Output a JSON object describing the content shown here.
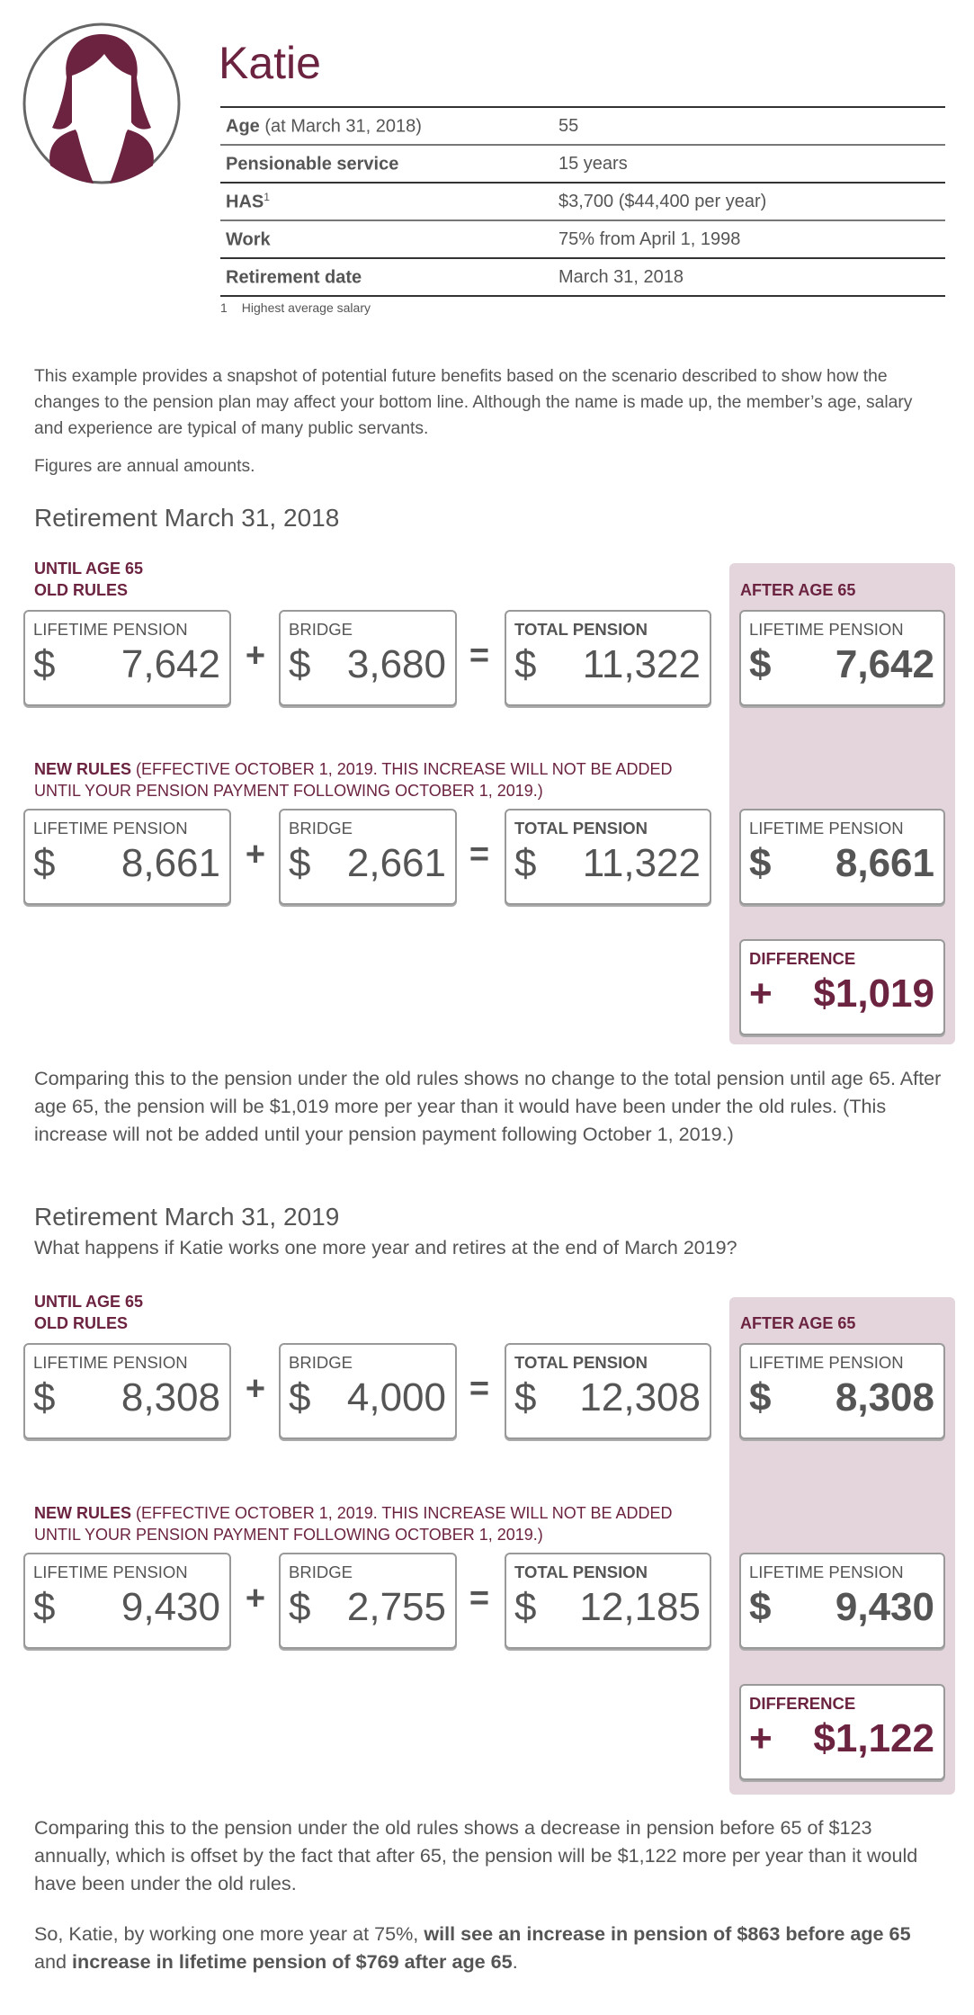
{
  "colors": {
    "accent": "#6b2340",
    "panel": "#e3d5db",
    "text": "#555555",
    "box_border": "#999999"
  },
  "profile": {
    "avatar_icon": "woman-avatar-icon",
    "name": "Katie",
    "rows": [
      {
        "label": "Age",
        "label_rest": " (at March 31, 2018)",
        "sup": "",
        "value": "55"
      },
      {
        "label": "Pensionable service",
        "label_rest": "",
        "sup": "",
        "value": "15 years"
      },
      {
        "label": "HAS",
        "label_rest": "",
        "sup": "1",
        "value": "$3,700 ($44,400 per year)"
      },
      {
        "label": "Work",
        "label_rest": "",
        "sup": "",
        "value": "75% from April 1, 1998"
      },
      {
        "label": "Retirement date",
        "label_rest": "",
        "sup": "",
        "value": "March 31, 2018"
      }
    ],
    "footnote": {
      "num": "1",
      "text": "Highest average salary"
    }
  },
  "intro": [
    "This example provides a snapshot of potential future benefits based on the scenario described to show how the changes to the pension plan may affect your bottom line. Although the name is made up, the member’s age, salary and experience are typical of many public servants.",
    "Figures are annual amounts."
  ],
  "sections": [
    {
      "heading": "Retirement March 31, 2018",
      "subtitle": "",
      "until_label": "UNTIL AGE 65",
      "old_label": "OLD RULES",
      "after_label": "AFTER AGE 65",
      "new_label": "NEW RULES",
      "new_note": " (EFFECTIVE OCTOBER 1, 2019. THIS INCREASE WILL NOT BE ADDED UNTIL YOUR PENSION PAYMENT FOLLOWING OCTOBER 1, 2019.)",
      "plus": "+",
      "equals": "=",
      "old": {
        "lifetime": {
          "label": "LIFETIME PENSION",
          "currency": "$",
          "value": "7,642"
        },
        "bridge": {
          "label": "BRIDGE",
          "currency": "$",
          "value": "3,680"
        },
        "total": {
          "label": "TOTAL PENSION",
          "currency": "$",
          "value": "11,322"
        },
        "after": {
          "label": "LIFETIME PENSION",
          "currency": "$",
          "value": "7,642"
        }
      },
      "new": {
        "lifetime": {
          "label": "LIFETIME PENSION",
          "currency": "$",
          "value": "8,661"
        },
        "bridge": {
          "label": "BRIDGE",
          "currency": "$",
          "value": "2,661"
        },
        "total": {
          "label": "TOTAL PENSION",
          "currency": "$",
          "value": "11,322"
        },
        "after": {
          "label": "LIFETIME PENSION",
          "currency": "$",
          "value": "8,661"
        }
      },
      "difference": {
        "label": "DIFFERENCE",
        "currency": "+",
        "value": "$1,019"
      },
      "paragraphs": [
        [
          {
            "text": "Comparing this to the pension under the old rules shows no change to the total pension until age 65. After age 65, the pension will be $1,019 more per year than it would have been under the old rules. (This increase will not be added until your pension payment following October 1, 2019.)",
            "bold": false
          }
        ]
      ]
    },
    {
      "heading": "Retirement March 31, 2019",
      "subtitle": "What happens if Katie works one more year and retires at the end of March 2019?",
      "until_label": "UNTIL AGE 65",
      "old_label": "OLD RULES",
      "after_label": "AFTER AGE 65",
      "new_label": "NEW RULES",
      "new_note": " (EFFECTIVE OCTOBER 1, 2019. THIS INCREASE WILL NOT BE ADDED UNTIL YOUR PENSION PAYMENT FOLLOWING OCTOBER 1, 2019.)",
      "plus": "+",
      "equals": "=",
      "old": {
        "lifetime": {
          "label": "LIFETIME PENSION",
          "currency": "$",
          "value": "8,308"
        },
        "bridge": {
          "label": "BRIDGE",
          "currency": "$",
          "value": "4,000"
        },
        "total": {
          "label": "TOTAL PENSION",
          "currency": "$",
          "value": "12,308"
        },
        "after": {
          "label": "LIFETIME PENSION",
          "currency": "$",
          "value": "8,308"
        }
      },
      "new": {
        "lifetime": {
          "label": "LIFETIME PENSION",
          "currency": "$",
          "value": "9,430"
        },
        "bridge": {
          "label": "BRIDGE",
          "currency": "$",
          "value": "2,755"
        },
        "total": {
          "label": "TOTAL PENSION",
          "currency": "$",
          "value": "12,185"
        },
        "after": {
          "label": "LIFETIME PENSION",
          "currency": "$",
          "value": "9,430"
        }
      },
      "difference": {
        "label": "DIFFERENCE",
        "currency": "+",
        "value": "$1,122"
      },
      "paragraphs": [
        [
          {
            "text": "Comparing this to the pension under the old rules shows a decrease in pension before 65 of $123 annually, which is offset by the fact that after 65, the pension will be $1,122 more per year than it would have been under the old rules.",
            "bold": false
          }
        ],
        [
          {
            "text": "So, Katie, by working one more year at 75%, ",
            "bold": false
          },
          {
            "text": "will see an increase in pension of $863 before age 65",
            "bold": true
          },
          {
            "text": " and ",
            "bold": false
          },
          {
            "text": "increase in lifetime pension of $769 after age 65",
            "bold": true
          },
          {
            "text": ".",
            "bold": false
          }
        ]
      ]
    }
  ]
}
